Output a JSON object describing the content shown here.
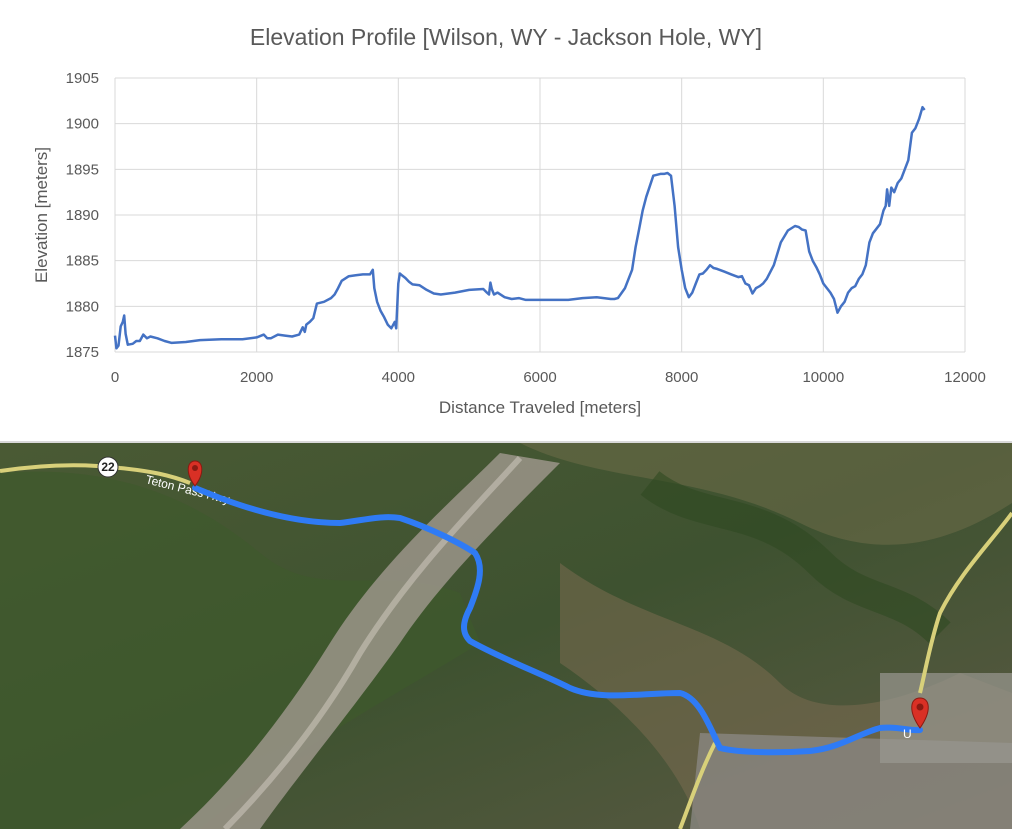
{
  "chart_data": {
    "type": "line",
    "title": "Elevation Profile [Wilson, WY - Jackson Hole, WY]",
    "xlabel": "Distance Traveled [meters]",
    "ylabel": "Elevation [meters]",
    "xlim": [
      0,
      12000
    ],
    "ylim": [
      1875,
      1905
    ],
    "xticks": [
      0,
      2000,
      4000,
      6000,
      8000,
      10000,
      12000
    ],
    "xtick_labels": [
      "0",
      "2000",
      "4000",
      "6000",
      "8000",
      "10000",
      "12000"
    ],
    "yticks": [
      1875,
      1880,
      1885,
      1890,
      1895,
      1900,
      1905
    ],
    "ytick_labels": [
      "1875",
      "1880",
      "1885",
      "1890",
      "1895",
      "1900",
      "1905"
    ],
    "grid": true,
    "line_color": "#4472c4",
    "series": [
      {
        "x": [
          0,
          20,
          50,
          80,
          110,
          130,
          150,
          180,
          250,
          300,
          350,
          400,
          450,
          500,
          600,
          700,
          800,
          1000,
          1200,
          1500,
          1800,
          2000,
          2100,
          2150,
          2200,
          2300,
          2400,
          2500,
          2600,
          2650,
          2680,
          2700,
          2750,
          2800,
          2850,
          2950,
          3050,
          3100,
          3150,
          3200,
          3300,
          3400,
          3500,
          3600,
          3640,
          3660,
          3700,
          3750,
          3800,
          3850,
          3900,
          3950,
          3970,
          4000,
          4020,
          4050,
          4100,
          4150,
          4200,
          4300,
          4400,
          4500,
          4600,
          4800,
          5000,
          5200,
          5250,
          5280,
          5300,
          5320,
          5350,
          5400,
          5500,
          5600,
          5700,
          5800,
          6000,
          6200,
          6400,
          6600,
          6800,
          6900,
          7000,
          7050,
          7100,
          7200,
          7300,
          7350,
          7400,
          7450,
          7500,
          7600,
          7700,
          7750,
          7800,
          7850,
          7900,
          7950,
          8000,
          8050,
          8100,
          8150,
          8200,
          8250,
          8300,
          8350,
          8400,
          8450,
          8500,
          8600,
          8700,
          8800,
          8850,
          8900,
          8950,
          9000,
          9050,
          9100,
          9150,
          9200,
          9300,
          9400,
          9500,
          9600,
          9650,
          9700,
          9750,
          9800,
          9850,
          9900,
          9950,
          10000,
          10050,
          10100,
          10150,
          10200,
          10250,
          10300,
          10350,
          10400,
          10450,
          10500,
          10550,
          10600,
          10650,
          10700,
          10750,
          10800,
          10850,
          10880,
          10900,
          10930,
          10960,
          11000,
          11050,
          11100,
          11150,
          11200,
          11250,
          11300,
          11350,
          11400,
          11430
        ],
        "y": [
          1876.8,
          1875.4,
          1875.7,
          1877.8,
          1878.3,
          1879.0,
          1877.0,
          1875.8,
          1875.9,
          1876.2,
          1876.2,
          1876.9,
          1876.5,
          1876.7,
          1876.5,
          1876.2,
          1876.0,
          1876.1,
          1876.3,
          1876.4,
          1876.4,
          1876.6,
          1876.9,
          1876.5,
          1876.5,
          1876.9,
          1876.8,
          1876.7,
          1876.9,
          1877.7,
          1877.2,
          1878.0,
          1878.3,
          1878.7,
          1880.3,
          1880.5,
          1880.9,
          1881.3,
          1882.0,
          1882.8,
          1883.3,
          1883.4,
          1883.5,
          1883.5,
          1884.0,
          1882.0,
          1880.5,
          1879.5,
          1878.8,
          1878.0,
          1877.6,
          1878.3,
          1877.6,
          1882.5,
          1883.6,
          1883.4,
          1883.1,
          1882.7,
          1882.4,
          1882.3,
          1881.8,
          1881.4,
          1881.3,
          1881.5,
          1881.8,
          1881.9,
          1881.5,
          1881.3,
          1882.6,
          1881.9,
          1881.3,
          1881.5,
          1881.0,
          1880.8,
          1880.9,
          1880.7,
          1880.7,
          1880.7,
          1880.7,
          1880.9,
          1881.0,
          1880.9,
          1880.8,
          1880.8,
          1880.9,
          1882.0,
          1884.0,
          1886.5,
          1888.5,
          1890.5,
          1892.0,
          1894.3,
          1894.5,
          1894.5,
          1894.6,
          1894.3,
          1891.0,
          1886.5,
          1884.0,
          1882.0,
          1881.0,
          1881.5,
          1882.5,
          1883.5,
          1883.6,
          1884.0,
          1884.5,
          1884.2,
          1884.1,
          1883.8,
          1883.5,
          1883.2,
          1883.3,
          1882.5,
          1882.3,
          1881.4,
          1882.0,
          1882.2,
          1882.5,
          1883.0,
          1884.5,
          1887.0,
          1888.3,
          1888.8,
          1888.7,
          1888.4,
          1888.3,
          1886.0,
          1885.0,
          1884.3,
          1883.5,
          1882.5,
          1882.0,
          1881.5,
          1880.8,
          1879.3,
          1880.0,
          1880.5,
          1881.5,
          1882.0,
          1882.2,
          1883.0,
          1883.5,
          1884.5,
          1887.0,
          1888.0,
          1888.5,
          1889.0,
          1890.5,
          1891.0,
          1892.8,
          1891.0,
          1893.0,
          1892.5,
          1893.5,
          1894.0,
          1895.0,
          1896.0,
          1899.0,
          1899.5,
          1900.5,
          1901.8,
          1901.5
        ]
      }
    ]
  },
  "map": {
    "route_color": "#2f7bf5",
    "road_label_22": "22",
    "road_label_pass": "Teton Pass Hwy",
    "town_label": "U"
  }
}
